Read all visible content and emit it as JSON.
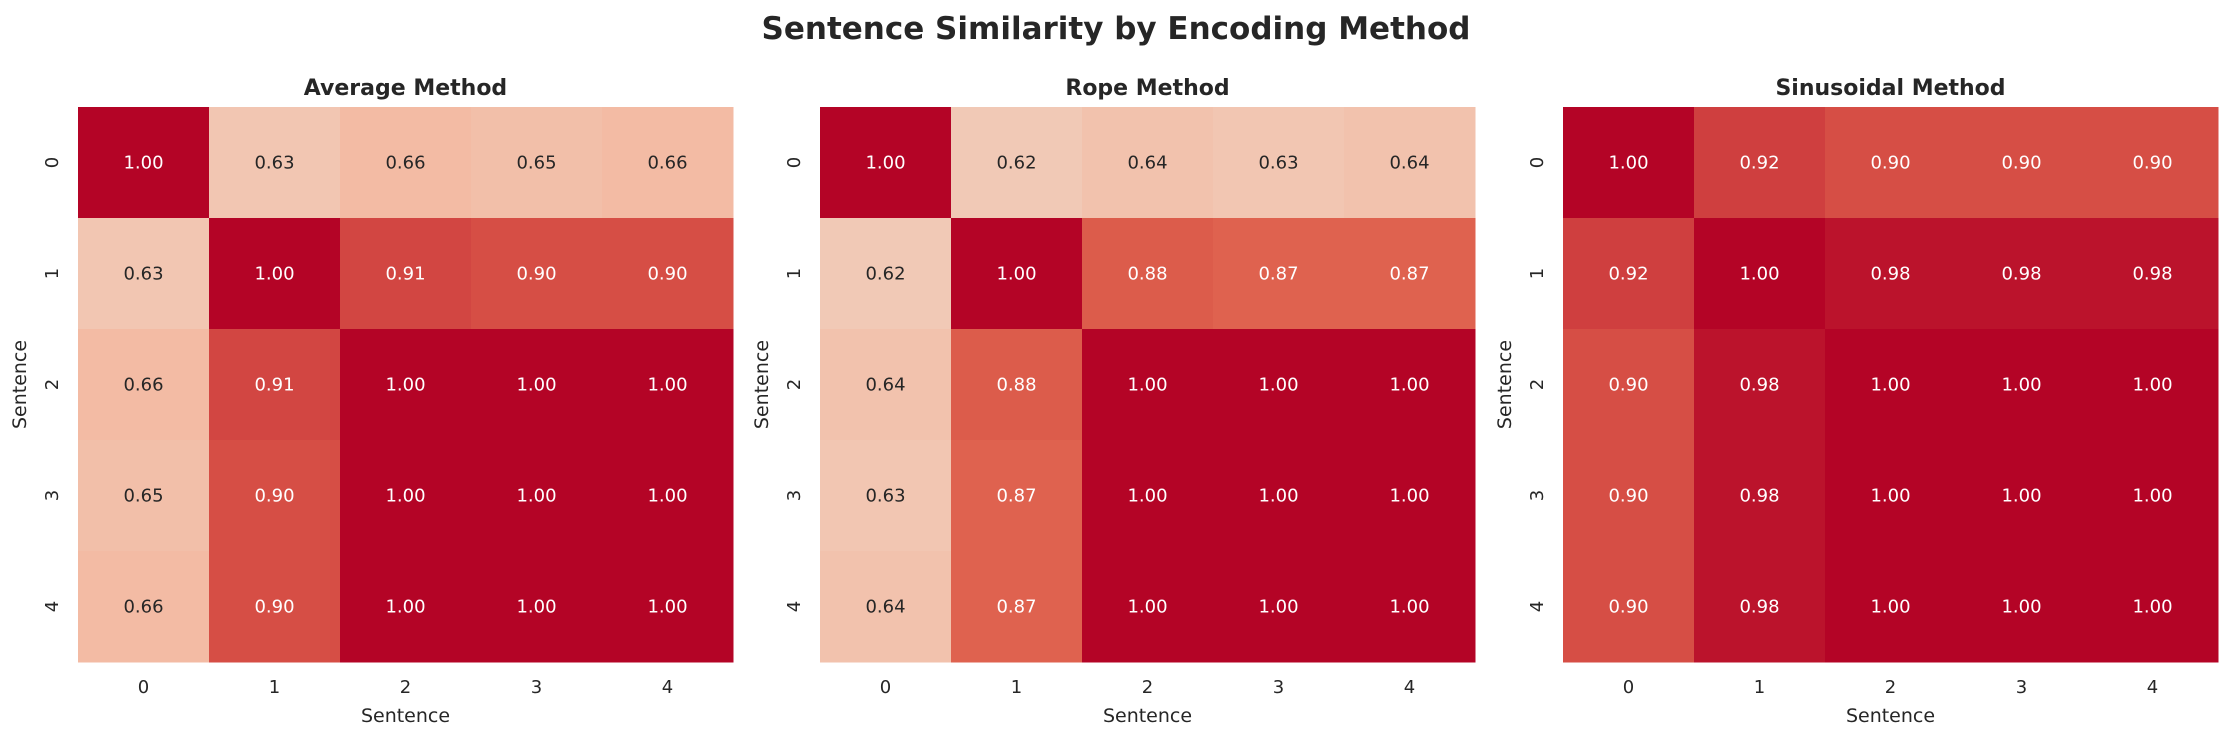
{
  "title": "Sentence Similarity by Encoding Method",
  "colormap": "coolwarm",
  "chart_data": [
    {
      "type": "heatmap",
      "title": "Average Method",
      "xlabel": "Sentence",
      "ylabel": "Sentence",
      "x_ticks": [
        "0",
        "1",
        "2",
        "3",
        "4"
      ],
      "y_ticks": [
        "0",
        "1",
        "2",
        "3",
        "4"
      ],
      "value_range": [
        0,
        1
      ],
      "values": [
        [
          1.0,
          0.63,
          0.66,
          0.65,
          0.66
        ],
        [
          0.63,
          1.0,
          0.91,
          0.9,
          0.9
        ],
        [
          0.66,
          0.91,
          1.0,
          1.0,
          1.0
        ],
        [
          0.65,
          0.9,
          1.0,
          1.0,
          1.0
        ],
        [
          0.66,
          0.9,
          1.0,
          1.0,
          1.0
        ]
      ]
    },
    {
      "type": "heatmap",
      "title": "Rope Method",
      "xlabel": "Sentence",
      "ylabel": "Sentence",
      "x_ticks": [
        "0",
        "1",
        "2",
        "3",
        "4"
      ],
      "y_ticks": [
        "0",
        "1",
        "2",
        "3",
        "4"
      ],
      "value_range": [
        0,
        1
      ],
      "values": [
        [
          1.0,
          0.62,
          0.64,
          0.63,
          0.64
        ],
        [
          0.62,
          1.0,
          0.88,
          0.87,
          0.87
        ],
        [
          0.64,
          0.88,
          1.0,
          1.0,
          1.0
        ],
        [
          0.63,
          0.87,
          1.0,
          1.0,
          1.0
        ],
        [
          0.64,
          0.87,
          1.0,
          1.0,
          1.0
        ]
      ]
    },
    {
      "type": "heatmap",
      "title": "Sinusoidal Method",
      "xlabel": "Sentence",
      "ylabel": "Sentence",
      "x_ticks": [
        "0",
        "1",
        "2",
        "3",
        "4"
      ],
      "y_ticks": [
        "0",
        "1",
        "2",
        "3",
        "4"
      ],
      "value_range": [
        0,
        1
      ],
      "values": [
        [
          1.0,
          0.92,
          0.9,
          0.9,
          0.9
        ],
        [
          0.92,
          1.0,
          0.98,
          0.98,
          0.98
        ],
        [
          0.9,
          0.98,
          1.0,
          1.0,
          1.0
        ],
        [
          0.9,
          0.98,
          1.0,
          1.0,
          1.0
        ],
        [
          0.9,
          0.98,
          1.0,
          1.0,
          1.0
        ]
      ]
    }
  ]
}
